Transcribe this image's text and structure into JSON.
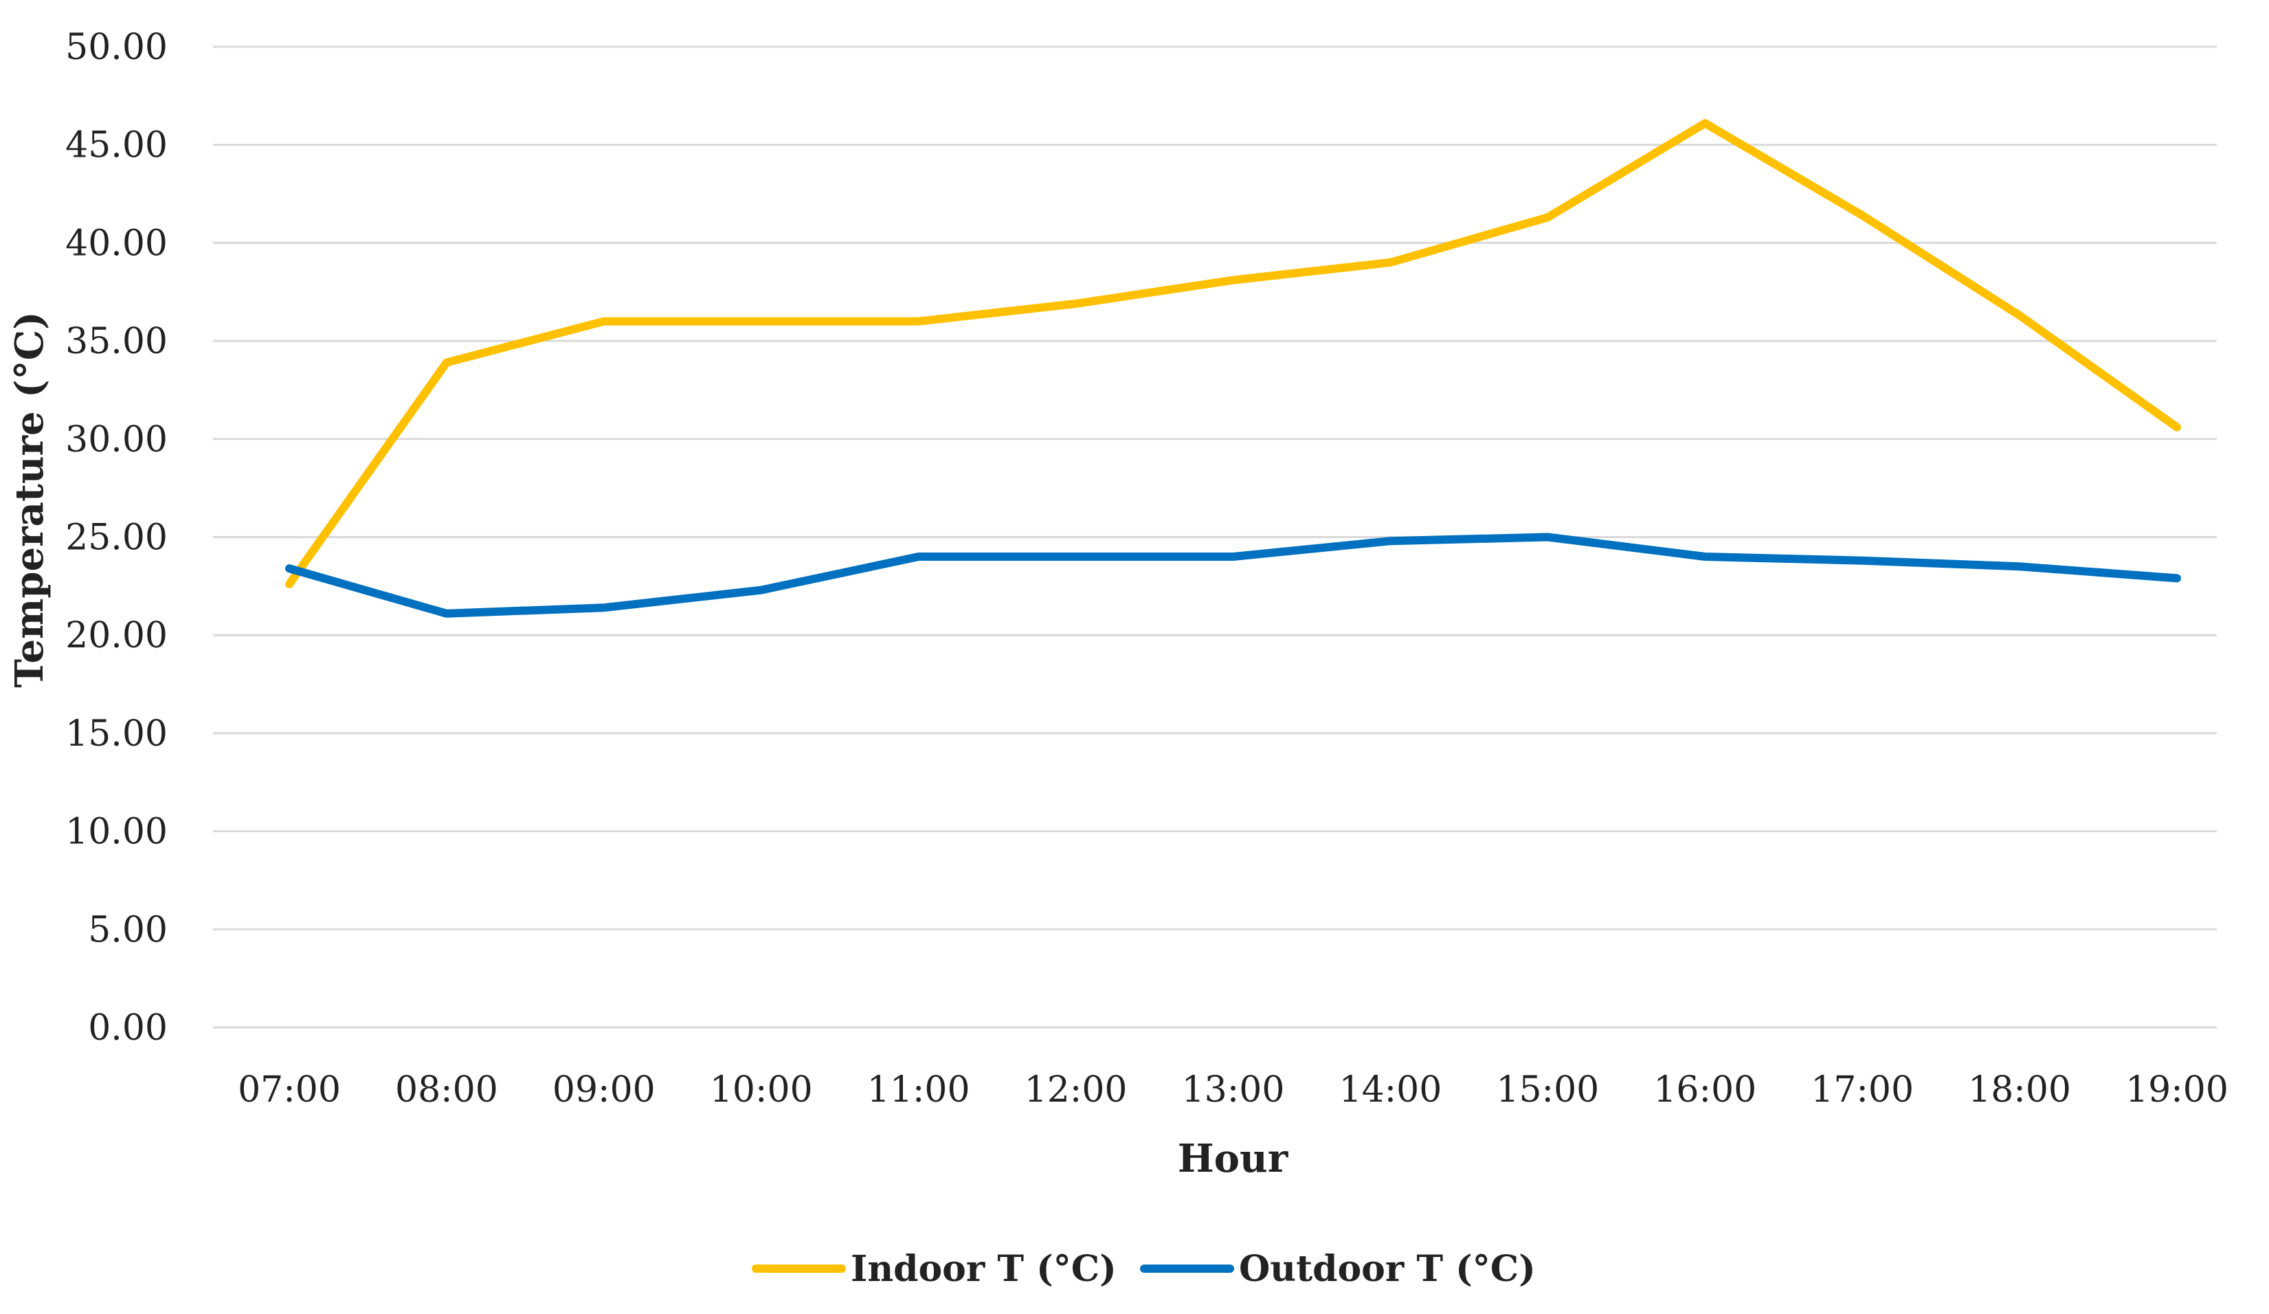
{
  "chart_data": {
    "type": "line",
    "title": "",
    "xlabel": "Hour",
    "ylabel": "Temperature (°C)",
    "ylim": [
      0,
      50
    ],
    "yticks": [
      "0.00",
      "5.00",
      "10.00",
      "15.00",
      "20.00",
      "25.00",
      "30.00",
      "35.00",
      "40.00",
      "45.00",
      "50.00"
    ],
    "categories": [
      "07:00",
      "08:00",
      "09:00",
      "10:00",
      "11:00",
      "12:00",
      "13:00",
      "14:00",
      "15:00",
      "16:00",
      "17:00",
      "18:00",
      "19:00"
    ],
    "grid": true,
    "legend_position": "bottom",
    "series": [
      {
        "name": "Indoor T (°C)",
        "color": "#FFC000",
        "values": [
          22.6,
          33.9,
          36.0,
          36.0,
          36.0,
          36.9,
          38.1,
          39.0,
          41.3,
          46.1,
          41.4,
          36.3,
          30.6
        ]
      },
      {
        "name": "Outdoor T (°C)",
        "color": "#0070C0",
        "values": [
          23.4,
          21.1,
          21.4,
          22.3,
          24.0,
          24.0,
          24.0,
          24.8,
          25.0,
          24.0,
          23.8,
          23.5,
          22.9
        ]
      }
    ]
  }
}
